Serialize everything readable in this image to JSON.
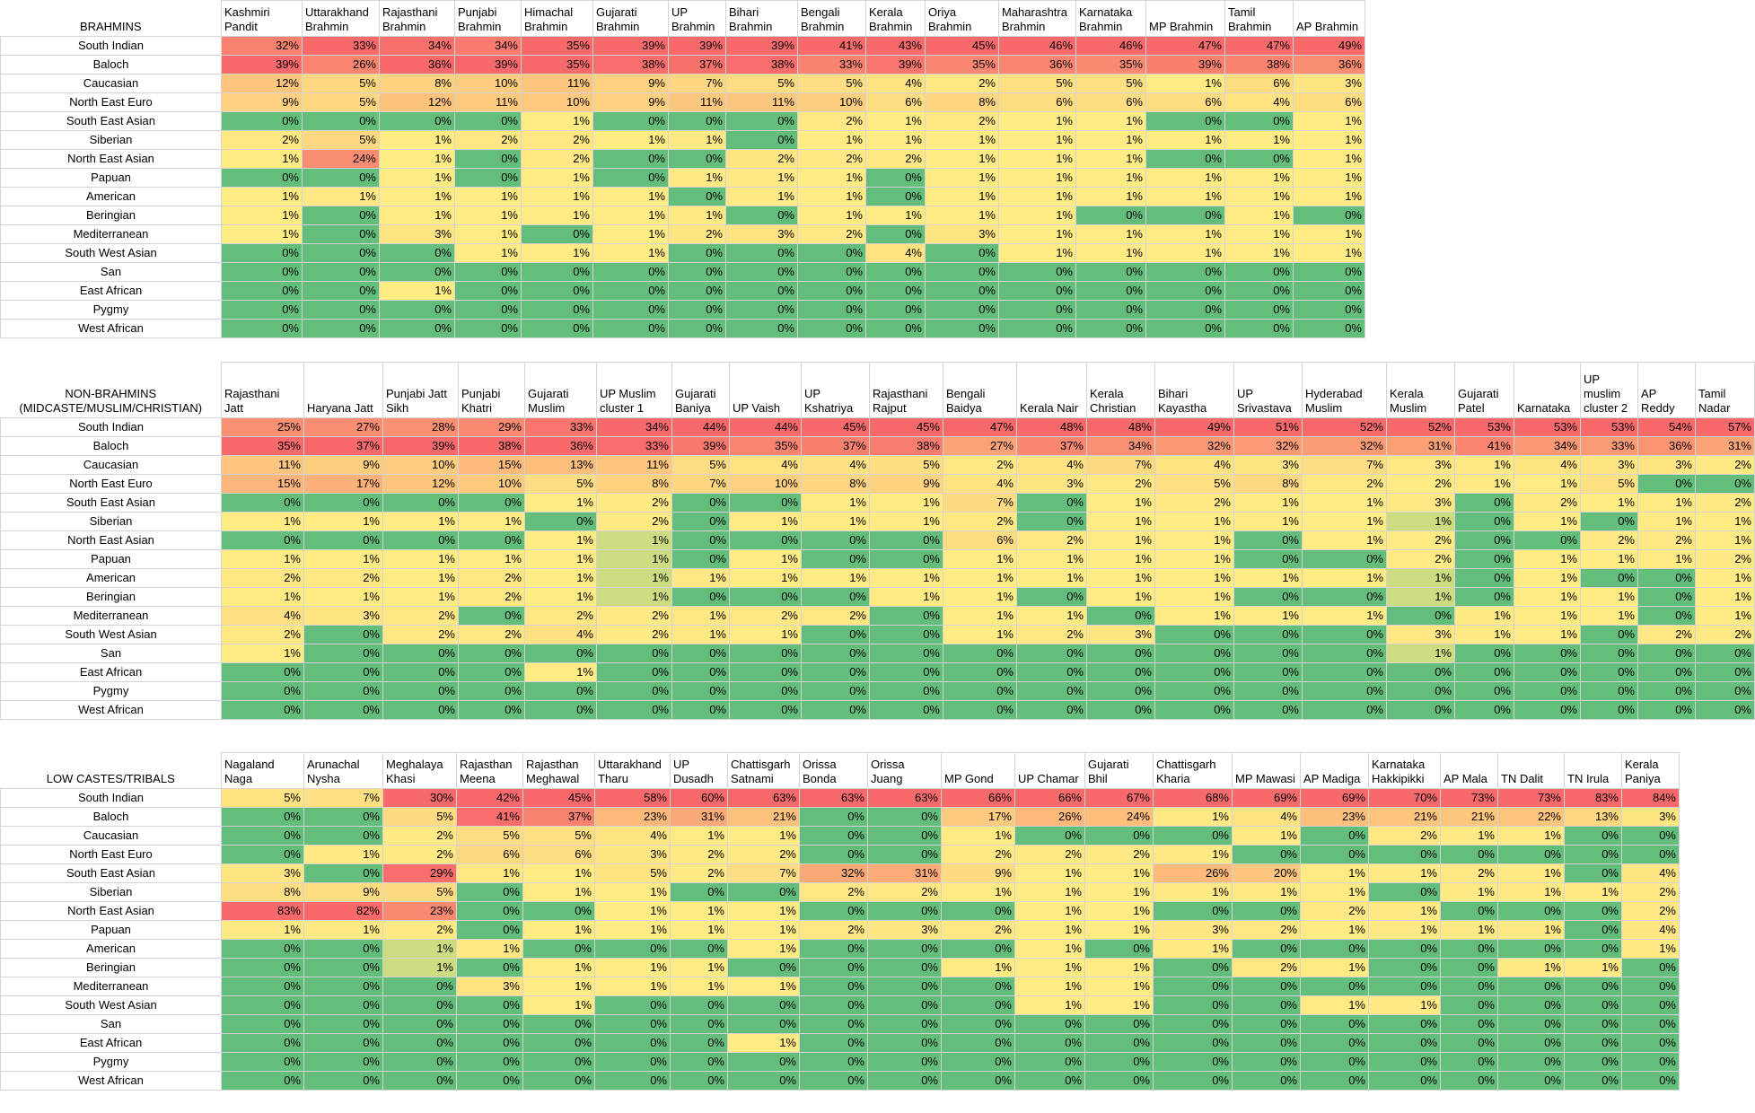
{
  "chart_data": [
    {
      "type": "heatmap",
      "title": "BRAHMINS",
      "rows": [
        "South Indian",
        "Baloch",
        "Caucasian",
        "North East Euro",
        "South East Asian",
        "Siberian",
        "North East Asian",
        "Papuan",
        "American",
        "Beringian",
        "Mediterranean",
        "South West Asian",
        "San",
        "East African",
        "Pygmy",
        "West African"
      ],
      "columns": [
        "Kashmiri Pandit",
        "Uttarakhand Brahmin",
        "Rajasthani Brahmin",
        "Punjabi Brahmin",
        "Himachal Brahmin",
        "Gujarati Brahmin",
        "UP Brahmin",
        "Bihari Brahmin",
        "Bengali Brahmin",
        "Kerala Brahmin",
        "Oriya Brahmin",
        "Maharashtra Brahmin",
        "Karnataka Brahmin",
        "MP Brahmin",
        "Tamil Brahmin",
        "AP Brahmin"
      ],
      "values": [
        [
          32,
          33,
          34,
          34,
          35,
          39,
          39,
          39,
          41,
          43,
          45,
          46,
          46,
          47,
          47,
          49
        ],
        [
          39,
          26,
          36,
          39,
          35,
          38,
          37,
          38,
          33,
          39,
          35,
          36,
          35,
          39,
          38,
          36
        ],
        [
          12,
          5,
          8,
          10,
          11,
          9,
          7,
          5,
          5,
          4,
          2,
          5,
          5,
          1,
          6,
          3
        ],
        [
          9,
          5,
          12,
          11,
          10,
          9,
          11,
          11,
          10,
          6,
          8,
          6,
          6,
          6,
          4,
          6
        ],
        [
          0,
          0,
          0,
          0,
          1,
          0,
          0,
          0,
          2,
          1,
          2,
          1,
          1,
          0,
          0,
          1
        ],
        [
          2,
          5,
          1,
          2,
          2,
          1,
          1,
          0,
          1,
          1,
          1,
          1,
          1,
          1,
          1,
          1
        ],
        [
          1,
          24,
          1,
          0,
          2,
          0,
          0,
          2,
          2,
          2,
          1,
          1,
          1,
          0,
          0,
          1
        ],
        [
          0,
          0,
          1,
          0,
          1,
          0,
          1,
          1,
          1,
          0,
          1,
          1,
          1,
          1,
          1,
          1
        ],
        [
          1,
          1,
          1,
          1,
          1,
          1,
          0,
          1,
          1,
          0,
          1,
          1,
          1,
          1,
          1,
          1
        ],
        [
          1,
          0,
          1,
          1,
          1,
          1,
          1,
          0,
          1,
          1,
          1,
          1,
          0,
          0,
          1,
          0
        ],
        [
          1,
          0,
          3,
          1,
          0,
          1,
          2,
          3,
          2,
          0,
          3,
          1,
          1,
          1,
          1,
          1
        ],
        [
          0,
          0,
          0,
          1,
          1,
          1,
          0,
          0,
          0,
          4,
          0,
          1,
          1,
          1,
          1,
          1
        ],
        [
          0,
          0,
          0,
          0,
          0,
          0,
          0,
          0,
          0,
          0,
          0,
          0,
          0,
          0,
          0,
          0
        ],
        [
          0,
          0,
          1,
          0,
          0,
          0,
          0,
          0,
          0,
          0,
          0,
          0,
          0,
          0,
          0,
          0
        ],
        [
          0,
          0,
          0,
          0,
          0,
          0,
          0,
          0,
          0,
          0,
          0,
          0,
          0,
          0,
          0,
          0
        ],
        [
          0,
          0,
          0,
          0,
          0,
          0,
          0,
          0,
          0,
          0,
          0,
          0,
          0,
          0,
          0,
          0
        ]
      ],
      "unit": "%"
    },
    {
      "type": "heatmap",
      "title": "NON-BRAHMINS (MIDCASTE/MUSLIM/CHRISTIAN)",
      "rows": [
        "South Indian",
        "Baloch",
        "Caucasian",
        "North East Euro",
        "South East Asian",
        "Siberian",
        "North East Asian",
        "Papuan",
        "American",
        "Beringian",
        "Mediterranean",
        "South West Asian",
        "San",
        "East African",
        "Pygmy",
        "West African"
      ],
      "columns": [
        "Rajasthani Jatt",
        "Haryana Jatt",
        "Punjabi Jatt Sikh",
        "Punjabi Khatri",
        "Gujarati Muslim",
        "UP Muslim cluster 1",
        "Gujarati Baniya",
        "UP Vaish",
        "UP Kshatriya",
        "Rajasthani Rajput",
        "Bengali Baidya",
        "Kerala Nair",
        "Kerala Christian",
        "Bihari Kayastha",
        "UP Srivastava",
        "Hyderabad Muslim",
        "Kerala Muslim",
        "Gujarati Patel",
        "Karnataka",
        "UP muslim cluster 2",
        "AP Reddy",
        "Tamil Nadar"
      ],
      "values": [
        [
          25,
          27,
          28,
          29,
          33,
          34,
          44,
          44,
          45,
          45,
          47,
          48,
          48,
          49,
          51,
          52,
          52,
          53,
          53,
          53,
          54,
          57
        ],
        [
          35,
          37,
          39,
          38,
          36,
          33,
          39,
          35,
          37,
          38,
          27,
          37,
          34,
          32,
          32,
          32,
          31,
          41,
          34,
          33,
          36,
          31
        ],
        [
          11,
          9,
          10,
          15,
          13,
          11,
          5,
          4,
          4,
          5,
          2,
          4,
          7,
          4,
          3,
          7,
          3,
          1,
          4,
          3,
          3,
          2
        ],
        [
          15,
          17,
          12,
          10,
          5,
          8,
          7,
          10,
          8,
          9,
          4,
          3,
          2,
          5,
          8,
          2,
          2,
          1,
          1,
          5,
          0,
          0
        ],
        [
          0,
          0,
          0,
          0,
          1,
          2,
          0,
          0,
          1,
          1,
          7,
          0,
          1,
          2,
          1,
          1,
          3,
          0,
          2,
          1,
          1,
          2
        ],
        [
          1,
          1,
          1,
          1,
          0,
          2,
          0,
          1,
          1,
          1,
          2,
          0,
          1,
          1,
          1,
          1,
          1,
          0,
          1,
          0,
          1,
          1
        ],
        [
          0,
          0,
          0,
          0,
          1,
          1,
          0,
          0,
          0,
          0,
          6,
          2,
          1,
          1,
          0,
          1,
          2,
          0,
          0,
          2,
          2,
          1
        ],
        [
          1,
          1,
          1,
          1,
          1,
          1,
          0,
          1,
          0,
          0,
          1,
          1,
          1,
          1,
          0,
          0,
          2,
          0,
          1,
          1,
          1,
          2
        ],
        [
          2,
          2,
          1,
          2,
          1,
          1,
          1,
          1,
          1,
          1,
          1,
          1,
          1,
          1,
          1,
          1,
          1,
          0,
          1,
          0,
          0,
          1
        ],
        [
          1,
          1,
          1,
          2,
          1,
          1,
          0,
          0,
          0,
          1,
          1,
          0,
          1,
          1,
          0,
          0,
          1,
          0,
          1,
          1,
          0,
          1
        ],
        [
          4,
          3,
          2,
          0,
          2,
          2,
          1,
          2,
          2,
          0,
          1,
          1,
          0,
          1,
          1,
          1,
          0,
          1,
          1,
          1,
          0,
          1
        ],
        [
          2,
          0,
          2,
          2,
          4,
          2,
          1,
          1,
          0,
          0,
          1,
          2,
          3,
          0,
          0,
          0,
          3,
          1,
          1,
          0,
          2,
          2
        ],
        [
          1,
          0,
          0,
          0,
          0,
          0,
          0,
          0,
          0,
          0,
          0,
          0,
          0,
          0,
          0,
          0,
          1,
          0,
          0,
          0,
          0,
          0
        ],
        [
          0,
          0,
          0,
          0,
          1,
          0,
          0,
          0,
          0,
          0,
          0,
          0,
          0,
          0,
          0,
          0,
          0,
          0,
          0,
          0,
          0,
          0
        ],
        [
          0,
          0,
          0,
          0,
          0,
          0,
          0,
          0,
          0,
          0,
          0,
          0,
          0,
          0,
          0,
          0,
          0,
          0,
          0,
          0,
          0,
          0
        ],
        [
          0,
          0,
          0,
          0,
          0,
          0,
          0,
          0,
          0,
          0,
          0,
          0,
          0,
          0,
          0,
          0,
          0,
          0,
          0,
          0,
          0,
          0
        ]
      ],
      "unit": "%"
    },
    {
      "type": "heatmap",
      "title": "LOW CASTES/TRIBALS",
      "rows": [
        "South Indian",
        "Baloch",
        "Caucasian",
        "North East Euro",
        "South East Asian",
        "Siberian",
        "North East Asian",
        "Papuan",
        "American",
        "Beringian",
        "Mediterranean",
        "South West Asian",
        "San",
        "East African",
        "Pygmy",
        "West African"
      ],
      "columns": [
        "Nagaland Naga",
        "Arunachal Nysha",
        "Meghalaya Khasi",
        "Rajasthan Meena",
        "Rajasthan Meghawal",
        "Uttarakhand Tharu",
        "UP Dusadh",
        "Chattisgarh Satnami",
        "Orissa Bonda",
        "Orissa Juang",
        "MP Gond",
        "UP Chamar",
        "Gujarati Bhil",
        "Chattisgarh Kharia",
        "MP Mawasi",
        "AP Madiga",
        "Karnataka Hakkipikki",
        "AP Mala",
        "TN Dalit",
        "TN Irula",
        "Kerala Paniya"
      ],
      "values": [
        [
          5,
          7,
          30,
          42,
          45,
          58,
          60,
          63,
          63,
          63,
          66,
          66,
          67,
          68,
          69,
          69,
          70,
          73,
          73,
          83,
          84
        ],
        [
          0,
          0,
          5,
          41,
          37,
          23,
          31,
          21,
          0,
          0,
          17,
          26,
          24,
          1,
          4,
          23,
          21,
          21,
          22,
          13,
          3
        ],
        [
          0,
          0,
          2,
          5,
          5,
          4,
          1,
          1,
          0,
          0,
          1,
          0,
          0,
          0,
          1,
          0,
          2,
          1,
          1,
          0,
          0
        ],
        [
          0,
          1,
          2,
          6,
          6,
          3,
          2,
          2,
          0,
          0,
          2,
          2,
          2,
          1,
          0,
          0,
          0,
          0,
          0,
          0,
          0
        ],
        [
          3,
          0,
          29,
          1,
          1,
          5,
          2,
          7,
          32,
          31,
          9,
          1,
          1,
          26,
          20,
          1,
          1,
          2,
          1,
          0,
          4
        ],
        [
          8,
          9,
          5,
          0,
          1,
          1,
          0,
          0,
          2,
          2,
          1,
          1,
          1,
          1,
          1,
          1,
          0,
          1,
          1,
          1,
          2
        ],
        [
          83,
          82,
          23,
          0,
          0,
          1,
          1,
          1,
          0,
          0,
          0,
          1,
          1,
          0,
          0,
          2,
          1,
          0,
          0,
          0,
          2
        ],
        [
          1,
          1,
          2,
          0,
          1,
          1,
          1,
          1,
          2,
          3,
          2,
          1,
          1,
          3,
          2,
          1,
          1,
          1,
          1,
          0,
          4
        ],
        [
          0,
          0,
          1,
          1,
          0,
          0,
          0,
          1,
          0,
          0,
          0,
          1,
          0,
          1,
          0,
          0,
          0,
          0,
          0,
          0,
          1
        ],
        [
          0,
          0,
          1,
          0,
          1,
          1,
          1,
          0,
          0,
          0,
          1,
          1,
          1,
          0,
          2,
          1,
          0,
          0,
          1,
          1,
          0
        ],
        [
          0,
          0,
          0,
          3,
          1,
          1,
          1,
          1,
          0,
          0,
          0,
          1,
          1,
          0,
          0,
          0,
          0,
          0,
          0,
          0,
          0
        ],
        [
          0,
          0,
          0,
          0,
          1,
          0,
          0,
          0,
          0,
          0,
          0,
          1,
          1,
          0,
          0,
          1,
          1,
          0,
          0,
          0,
          0
        ],
        [
          0,
          0,
          0,
          0,
          0,
          0,
          0,
          0,
          0,
          0,
          0,
          0,
          0,
          0,
          0,
          0,
          0,
          0,
          0,
          0,
          0
        ],
        [
          0,
          0,
          0,
          0,
          0,
          0,
          0,
          1,
          0,
          0,
          0,
          0,
          0,
          0,
          0,
          0,
          0,
          0,
          0,
          0,
          0
        ],
        [
          0,
          0,
          0,
          0,
          0,
          0,
          0,
          0,
          0,
          0,
          0,
          0,
          0,
          0,
          0,
          0,
          0,
          0,
          0,
          0,
          0
        ],
        [
          0,
          0,
          0,
          0,
          0,
          0,
          0,
          0,
          0,
          0,
          0,
          0,
          0,
          0,
          0,
          0,
          0,
          0,
          0,
          0,
          0
        ]
      ],
      "unit": "%"
    }
  ],
  "colors": {
    "scale": [
      "#63be7b",
      "#ffeb84",
      "#f8696b"
    ],
    "border": "#d4d4d4"
  }
}
